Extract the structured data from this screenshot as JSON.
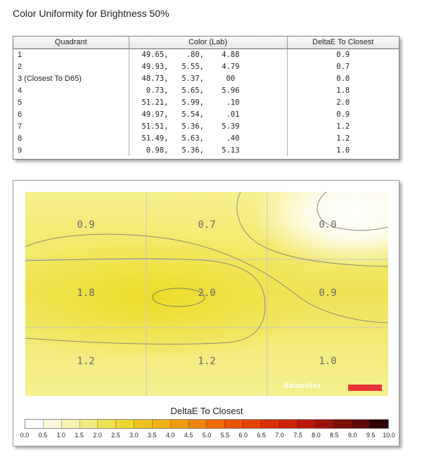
{
  "title": "Color Uniformity for Brightness 50%",
  "table": {
    "headers": [
      "Quadrant",
      "Color (Lab)",
      "DeltaE To Closest"
    ],
    "rows": [
      {
        "quadrant": "1",
        "lab": "49.65,    .80,    4.88",
        "delta": "0.9"
      },
      {
        "quadrant": "2",
        "lab": "49.93,   5.55,    4.79",
        "delta": "0.7"
      },
      {
        "quadrant": "3 (Closest To D65)",
        "lab": "48.73,   5.37,     00",
        "delta": "0.0"
      },
      {
        "quadrant": "4",
        "lab": " 0.73,   5.65,    5.96",
        "delta": "1.8"
      },
      {
        "quadrant": "5",
        "lab": "51.21,   5.99,     .10",
        "delta": "2.0"
      },
      {
        "quadrant": "6",
        "lab": "49.97,   5.54,     .01",
        "delta": "0.9"
      },
      {
        "quadrant": "7",
        "lab": "51.51,   5.36,    5.39",
        "delta": "1.2"
      },
      {
        "quadrant": "8",
        "lab": "51.49,   5.63,     .40",
        "delta": "1.2"
      },
      {
        "quadrant": "9",
        "lab": " 0.98,   5.36,    5.13",
        "delta": "1.0"
      }
    ]
  },
  "map": {
    "cells": [
      "0.9",
      "0.7",
      "0.0",
      "1.8",
      "2.0",
      "0.9",
      "1.2",
      "1.2",
      "1.0"
    ],
    "brand": "datacolor",
    "brand_color": "#e8323a"
  },
  "scale": {
    "title": "DeltaE To Closest",
    "ticks": [
      "0.0",
      "0.5",
      "1.0",
      "1.5",
      "2.0",
      "2.5",
      "3.0",
      "3.5",
      "4.0",
      "4.5",
      "5.0",
      "5.5",
      "6.0",
      "6.5",
      "7.0",
      "7.5",
      "8.0",
      "8.5",
      "9.0",
      "9.5",
      "10.0"
    ],
    "colors": [
      "#ffffff",
      "#fbf9d8",
      "#f7f2b0",
      "#f2ea80",
      "#eee250",
      "#edd630",
      "#ecc41c",
      "#eeb212",
      "#ef9c0c",
      "#ee840a",
      "#ec6a08",
      "#e85406",
      "#e24206",
      "#d83006",
      "#cb2206",
      "#b8180a",
      "#9c120a",
      "#7e0e08",
      "#5e0a06",
      "#300404"
    ]
  }
}
